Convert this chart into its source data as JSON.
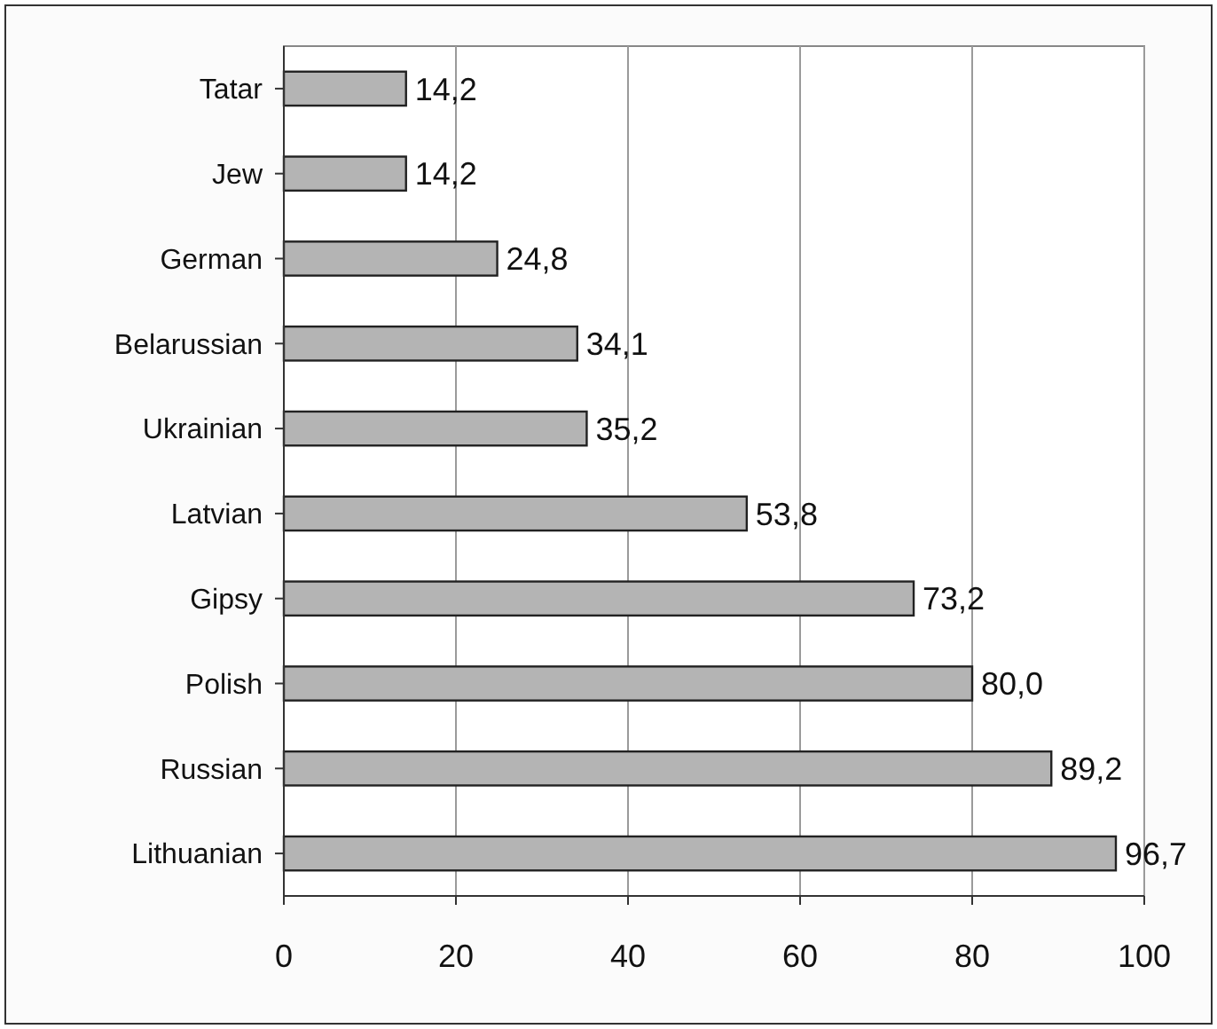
{
  "chart_data": {
    "type": "bar",
    "orientation": "horizontal",
    "categories": [
      "Tatar",
      "Jew",
      "German",
      "Belarussian",
      "Ukrainian",
      "Latvian",
      "Gipsy",
      "Polish",
      "Russian",
      "Lithuanian"
    ],
    "values": [
      14.2,
      14.2,
      24.8,
      34.1,
      35.2,
      53.8,
      73.2,
      80.0,
      89.2,
      96.7
    ],
    "value_labels": [
      "14,2",
      "14,2",
      "24,8",
      "34,1",
      "35,2",
      "53,8",
      "73,2",
      "80,0",
      "89,2",
      "96,7"
    ],
    "color": "#b4b4b4",
    "xlim": [
      0,
      100
    ],
    "xticks": [
      0,
      20,
      40,
      60,
      80,
      100
    ],
    "grid": "x"
  }
}
